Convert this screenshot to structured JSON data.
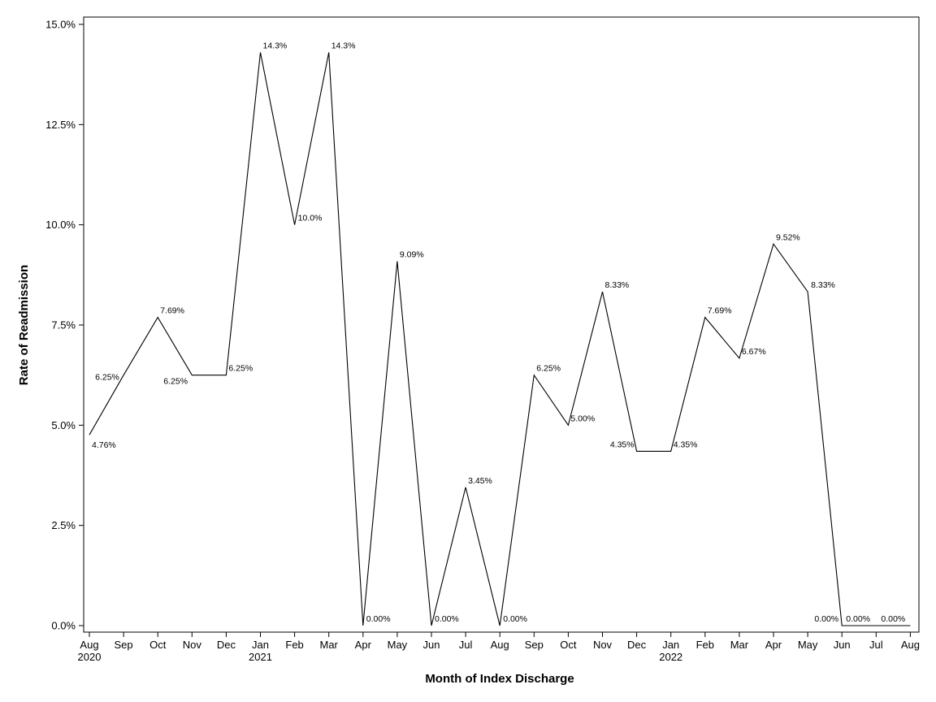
{
  "chart_data": {
    "type": "line",
    "xlabel": "Month of Index Discharge",
    "ylabel": "Rate of Readmission",
    "ylim": [
      0,
      15
    ],
    "y_ticks": [
      "0.0%",
      "2.5%",
      "5.0%",
      "7.5%",
      "10.0%",
      "12.5%",
      "15.0%"
    ],
    "y_tick_values": [
      0,
      2.5,
      5,
      7.5,
      10,
      12.5,
      15
    ],
    "grid": false,
    "categories": [
      "Aug",
      "Sep",
      "Oct",
      "Nov",
      "Dec",
      "Jan",
      "Feb",
      "Mar",
      "Apr",
      "May",
      "Jun",
      "Jul",
      "Aug",
      "Sep",
      "Oct",
      "Nov",
      "Dec",
      "Jan",
      "Feb",
      "Mar",
      "Apr",
      "May",
      "Jun",
      "Jul",
      "Aug"
    ],
    "year_labels": [
      {
        "index": 0,
        "text": "2020"
      },
      {
        "index": 5,
        "text": "2021"
      },
      {
        "index": 17,
        "text": "2022"
      }
    ],
    "values": [
      4.76,
      6.25,
      7.69,
      6.25,
      6.25,
      14.3,
      10.0,
      14.3,
      0.0,
      9.09,
      0.0,
      3.45,
      0.0,
      6.25,
      5.0,
      8.33,
      4.35,
      4.35,
      7.69,
      6.67,
      9.52,
      8.33,
      0.0,
      0.0,
      0.0
    ],
    "data_labels": [
      "4.76%",
      "6.25%",
      "7.69%",
      "6.25%",
      "6.25%",
      "14.3%",
      "10.0%",
      "14.3%",
      "0.00%",
      "9.09%",
      "0.00%",
      "3.45%",
      "0.00%",
      "6.25%",
      "5.00%",
      "8.33%",
      "4.35%",
      "4.35%",
      "7.69%",
      "6.67%",
      "9.52%",
      "8.33%",
      "0.00%",
      "0.00%",
      "0.00%"
    ],
    "line_color": "#000000"
  }
}
